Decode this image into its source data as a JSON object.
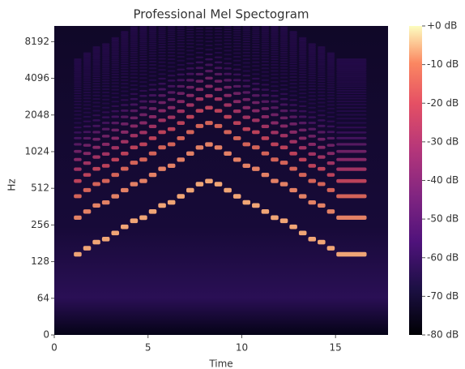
{
  "chart_data": {
    "type": "spectrogram",
    "title": "Professional Mel Spectogram",
    "x_label": "Time",
    "y_label": "Hz",
    "xlim": [
      0,
      17.8
    ],
    "xticks": [
      0,
      5,
      10,
      15
    ],
    "ylim": [
      0,
      11025
    ],
    "yscale": "symlog",
    "linthresh": 64,
    "yticks": [
      0,
      64,
      128,
      256,
      512,
      1024,
      2048,
      4096,
      8192
    ],
    "x": [
      1.0,
      1.5,
      2.0,
      2.5,
      3.0,
      3.5,
      4.0,
      4.5,
      5.0,
      5.5,
      6.0,
      6.5,
      7.0,
      7.5,
      8.0,
      8.5,
      9.0,
      9.5,
      10.0,
      10.5,
      11.0,
      11.5,
      12.0,
      12.5,
      13.0,
      13.5,
      14.0,
      14.5,
      15.0
    ],
    "values": [
      147,
      165,
      185,
      196,
      220,
      247,
      277,
      294,
      330,
      370,
      392,
      440,
      494,
      554,
      587,
      554,
      494,
      440,
      392,
      370,
      330,
      294,
      277,
      247,
      220,
      196,
      185,
      165,
      147
    ],
    "note_end": 16.7,
    "colormap": "magma",
    "zlim": [
      -80,
      0
    ],
    "colorbar_ticks": [
      {
        "value": 0,
        "label": "+0 dB"
      },
      {
        "value": -10,
        "label": "-10 dB"
      },
      {
        "value": -20,
        "label": "-20 dB"
      },
      {
        "value": -30,
        "label": "-30 dB"
      },
      {
        "value": -40,
        "label": "-40 dB"
      },
      {
        "value": -50,
        "label": "-50 dB"
      },
      {
        "value": -60,
        "label": "-60 dB"
      },
      {
        "value": -70,
        "label": "-70 dB"
      },
      {
        "value": -80,
        "label": "-80 dB"
      }
    ]
  }
}
